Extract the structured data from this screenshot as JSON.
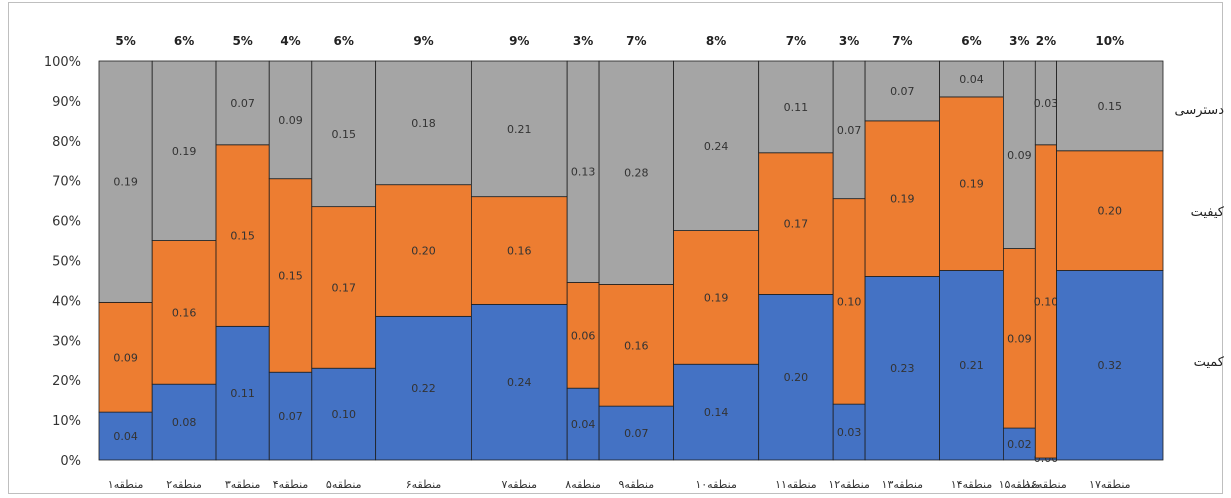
{
  "chart_data": {
    "type": "bar",
    "stacked": true,
    "percent_stacked": true,
    "variable_width": true,
    "ylim": [
      0,
      100
    ],
    "y_ticks": [
      "0%",
      "10%",
      "20%",
      "30%",
      "40%",
      "50%",
      "60%",
      "70%",
      "80%",
      "90%",
      "100%"
    ],
    "categories": [
      "منطقه۱",
      "منطقه۲",
      "منطقه۳",
      "منطقه۴",
      "منطقه۵",
      "منطقه۶",
      "منطقه۷",
      "منطقه۸",
      "منطقه۹",
      "منطقه۱۰",
      "منطقه۱۱",
      "منطقه۱۲",
      "منطقه۱۳",
      "منطقه۱۴",
      "منطقه۱۵",
      "منطقه۱۶",
      "منطقه۱۷"
    ],
    "shares": [
      "5%",
      "6%",
      "5%",
      "4%",
      "6%",
      "9%",
      "9%",
      "3%",
      "7%",
      "8%",
      "7%",
      "3%",
      "7%",
      "6%",
      "3%",
      "2%",
      "10%"
    ],
    "share_values": [
      5,
      6,
      5,
      4,
      6,
      9,
      9,
      3,
      7,
      8,
      7,
      3,
      7,
      6,
      3,
      2,
      10
    ],
    "series": [
      {
        "name": "کمیت",
        "color": "#4472c4",
        "labels": [
          "0.04",
          "0.08",
          "0.11",
          "0.07",
          "0.10",
          "0.22",
          "0.24",
          "0.04",
          "0.07",
          "0.14",
          "0.20",
          "0.03",
          "0.23",
          "0.21",
          "0.02",
          "0.00",
          "0.32"
        ],
        "percent": [
          12,
          19,
          33.5,
          22,
          23,
          36,
          39,
          18,
          13.5,
          24,
          41.5,
          14,
          46,
          47.5,
          8,
          0.5,
          47.5
        ]
      },
      {
        "name": "کیفیت",
        "color": "#ed7d31",
        "labels": [
          "0.09",
          "0.16",
          "0.15",
          "0.15",
          "0.17",
          "0.20",
          "0.16",
          "0.06",
          "0.16",
          "0.19",
          "0.17",
          "0.10",
          "0.19",
          "0.19",
          "0.09",
          "0.10",
          "0.20"
        ],
        "percent": [
          27.5,
          36,
          45.5,
          48.5,
          40.5,
          33,
          27,
          26.5,
          30.5,
          33.5,
          35.5,
          51.5,
          39,
          43.5,
          45,
          78.5,
          30
        ]
      },
      {
        "name": "دسترسی",
        "color": "#a5a5a5",
        "labels": [
          "0.19",
          "0.19",
          "0.07",
          "0.09",
          "0.15",
          "0.18",
          "0.21",
          "0.13",
          "0.28",
          "0.24",
          "0.11",
          "0.07",
          "0.07",
          "0.04",
          "0.09",
          "0.03",
          "0.15"
        ],
        "percent": [
          60.5,
          45,
          21,
          29.5,
          36.5,
          31,
          34,
          55.5,
          56,
          42.5,
          23,
          34.5,
          15,
          9,
          47,
          21,
          22.5
        ]
      }
    ],
    "legend_position": "right"
  }
}
